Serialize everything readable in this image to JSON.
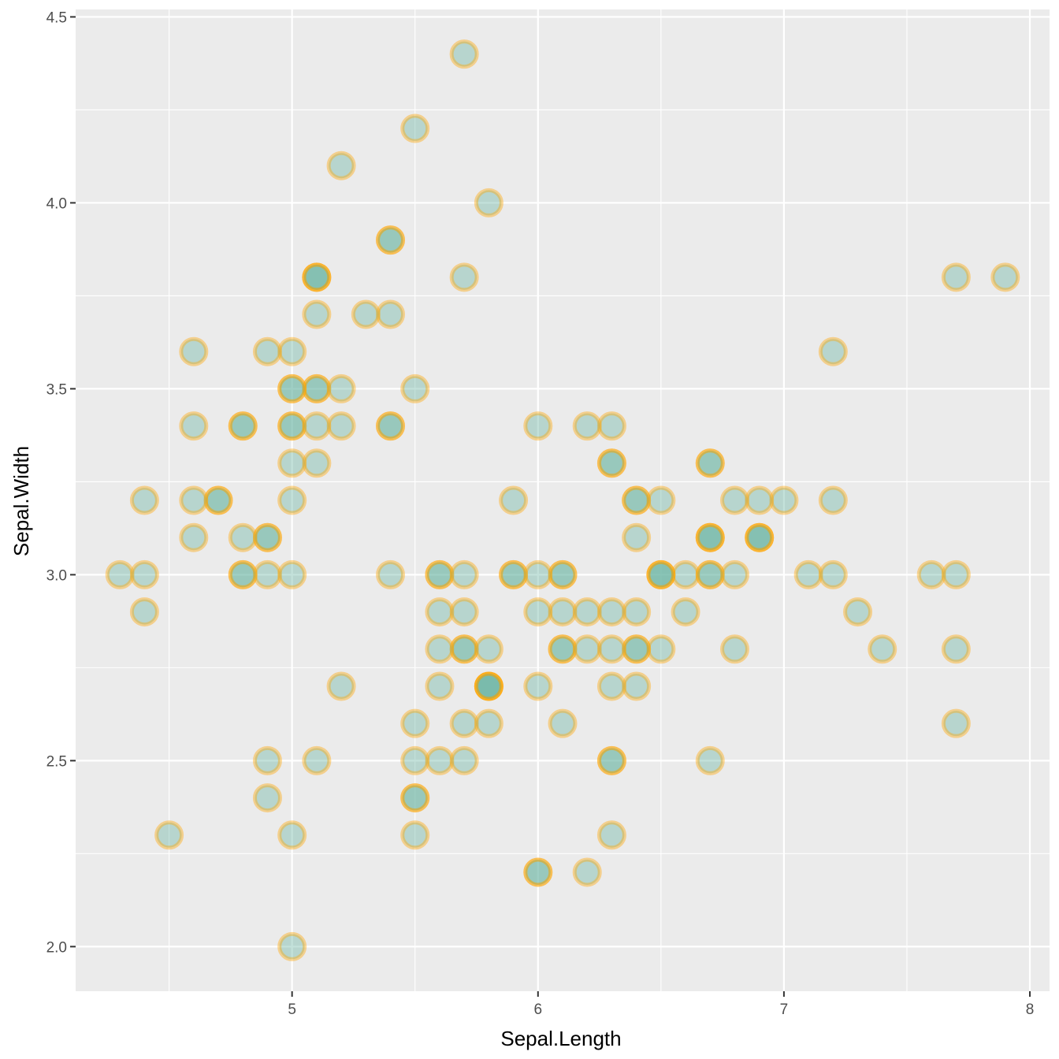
{
  "chart_data": {
    "type": "scatter",
    "title": "",
    "xlabel": "Sepal.Length",
    "ylabel": "Sepal.Width",
    "xlim": [
      4.12,
      8.08
    ],
    "ylim": [
      1.88,
      4.52
    ],
    "x_ticks": [
      5,
      6,
      7,
      8
    ],
    "x_tick_labels": [
      "5",
      "6",
      "7",
      "8"
    ],
    "y_ticks": [
      2.0,
      2.5,
      3.0,
      3.5,
      4.0,
      4.5
    ],
    "y_tick_labels": [
      "2.0",
      "2.5",
      "3.0",
      "3.5",
      "4.0",
      "4.5"
    ],
    "colors": {
      "panel_background": "#ebebeb",
      "grid": "#ffffff",
      "point_fill": "#69b3a2",
      "point_stroke": "#ffa500"
    },
    "point_alpha": 0.4,
    "points": [
      [
        5.1,
        3.5
      ],
      [
        4.9,
        3.0
      ],
      [
        4.7,
        3.2
      ],
      [
        4.6,
        3.1
      ],
      [
        5.0,
        3.6
      ],
      [
        5.4,
        3.9
      ],
      [
        4.6,
        3.4
      ],
      [
        5.0,
        3.4
      ],
      [
        4.4,
        2.9
      ],
      [
        4.9,
        3.1
      ],
      [
        5.4,
        3.7
      ],
      [
        4.8,
        3.4
      ],
      [
        4.8,
        3.0
      ],
      [
        4.3,
        3.0
      ],
      [
        5.8,
        4.0
      ],
      [
        5.7,
        4.4
      ],
      [
        5.4,
        3.9
      ],
      [
        5.1,
        3.5
      ],
      [
        5.7,
        3.8
      ],
      [
        5.1,
        3.8
      ],
      [
        5.4,
        3.4
      ],
      [
        5.1,
        3.7
      ],
      [
        4.6,
        3.6
      ],
      [
        5.1,
        3.3
      ],
      [
        4.8,
        3.4
      ],
      [
        5.0,
        3.0
      ],
      [
        5.0,
        3.4
      ],
      [
        5.2,
        3.5
      ],
      [
        5.2,
        3.4
      ],
      [
        4.7,
        3.2
      ],
      [
        4.8,
        3.1
      ],
      [
        5.4,
        3.4
      ],
      [
        5.2,
        4.1
      ],
      [
        5.5,
        4.2
      ],
      [
        4.9,
        3.1
      ],
      [
        5.0,
        3.2
      ],
      [
        5.5,
        3.5
      ],
      [
        4.9,
        3.6
      ],
      [
        4.4,
        3.0
      ],
      [
        5.1,
        3.4
      ],
      [
        5.0,
        3.5
      ],
      [
        4.5,
        2.3
      ],
      [
        4.4,
        3.2
      ],
      [
        5.0,
        3.5
      ],
      [
        5.1,
        3.8
      ],
      [
        4.8,
        3.0
      ],
      [
        5.1,
        3.8
      ],
      [
        4.6,
        3.2
      ],
      [
        5.3,
        3.7
      ],
      [
        5.0,
        3.3
      ],
      [
        7.0,
        3.2
      ],
      [
        6.4,
        3.2
      ],
      [
        6.9,
        3.1
      ],
      [
        5.5,
        2.3
      ],
      [
        6.5,
        2.8
      ],
      [
        5.7,
        2.8
      ],
      [
        6.3,
        3.3
      ],
      [
        4.9,
        2.4
      ],
      [
        6.6,
        2.9
      ],
      [
        5.2,
        2.7
      ],
      [
        5.0,
        2.0
      ],
      [
        5.9,
        3.0
      ],
      [
        6.0,
        2.2
      ],
      [
        6.1,
        2.9
      ],
      [
        5.6,
        2.9
      ],
      [
        6.7,
        3.1
      ],
      [
        5.6,
        3.0
      ],
      [
        5.8,
        2.7
      ],
      [
        6.2,
        2.2
      ],
      [
        5.6,
        2.5
      ],
      [
        5.9,
        3.2
      ],
      [
        6.1,
        2.8
      ],
      [
        6.3,
        2.5
      ],
      [
        6.1,
        2.8
      ],
      [
        6.4,
        2.9
      ],
      [
        6.6,
        3.0
      ],
      [
        6.8,
        2.8
      ],
      [
        6.7,
        3.0
      ],
      [
        6.0,
        2.9
      ],
      [
        5.7,
        2.6
      ],
      [
        5.5,
        2.4
      ],
      [
        5.5,
        2.4
      ],
      [
        5.8,
        2.7
      ],
      [
        6.0,
        2.7
      ],
      [
        5.4,
        3.0
      ],
      [
        6.0,
        3.4
      ],
      [
        6.7,
        3.1
      ],
      [
        6.3,
        2.3
      ],
      [
        5.6,
        3.0
      ],
      [
        5.5,
        2.5
      ],
      [
        5.5,
        2.6
      ],
      [
        6.1,
        3.0
      ],
      [
        5.8,
        2.6
      ],
      [
        5.0,
        2.3
      ],
      [
        5.6,
        2.7
      ],
      [
        5.7,
        3.0
      ],
      [
        5.7,
        2.9
      ],
      [
        6.2,
        2.9
      ],
      [
        5.1,
        2.5
      ],
      [
        5.7,
        2.8
      ],
      [
        6.3,
        3.3
      ],
      [
        5.8,
        2.7
      ],
      [
        7.1,
        3.0
      ],
      [
        6.3,
        2.9
      ],
      [
        6.5,
        3.0
      ],
      [
        7.6,
        3.0
      ],
      [
        4.9,
        2.5
      ],
      [
        7.3,
        2.9
      ],
      [
        6.7,
        2.5
      ],
      [
        7.2,
        3.6
      ],
      [
        6.5,
        3.2
      ],
      [
        6.4,
        2.7
      ],
      [
        6.8,
        3.0
      ],
      [
        5.7,
        2.5
      ],
      [
        5.8,
        2.8
      ],
      [
        6.4,
        3.2
      ],
      [
        6.5,
        3.0
      ],
      [
        7.7,
        3.8
      ],
      [
        7.7,
        2.6
      ],
      [
        6.0,
        2.2
      ],
      [
        6.9,
        3.2
      ],
      [
        5.6,
        2.8
      ],
      [
        7.7,
        2.8
      ],
      [
        6.3,
        2.7
      ],
      [
        6.7,
        3.3
      ],
      [
        7.2,
        3.2
      ],
      [
        6.2,
        2.8
      ],
      [
        6.1,
        3.0
      ],
      [
        6.4,
        2.8
      ],
      [
        7.2,
        3.0
      ],
      [
        7.4,
        2.8
      ],
      [
        7.9,
        3.8
      ],
      [
        6.4,
        2.8
      ],
      [
        6.3,
        2.8
      ],
      [
        6.1,
        2.6
      ],
      [
        7.7,
        3.0
      ],
      [
        6.3,
        3.4
      ],
      [
        6.4,
        3.1
      ],
      [
        6.0,
        3.0
      ],
      [
        6.9,
        3.1
      ],
      [
        6.7,
        3.1
      ],
      [
        6.9,
        3.1
      ],
      [
        5.8,
        2.7
      ],
      [
        6.8,
        3.2
      ],
      [
        6.7,
        3.3
      ],
      [
        6.7,
        3.0
      ],
      [
        6.3,
        2.5
      ],
      [
        6.5,
        3.0
      ],
      [
        6.2,
        3.4
      ],
      [
        5.9,
        3.0
      ]
    ]
  }
}
